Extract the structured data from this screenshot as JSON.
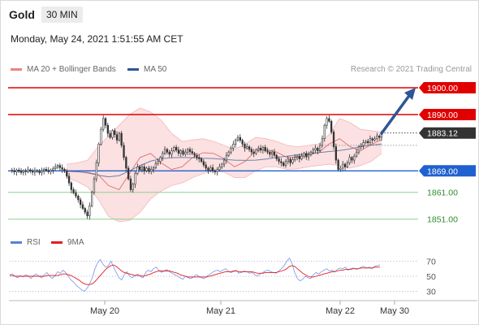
{
  "header": {
    "instrument": "Gold",
    "timeframe": "30 MIN",
    "datetime": "Monday, May 24, 2021 1:51:55 AM CET"
  },
  "legend": {
    "items": [
      {
        "label": "MA 20 + Bollinger Bands",
        "color": "#f08080"
      },
      {
        "label": "MA 50",
        "color": "#2f5597"
      }
    ],
    "copyright": "Research © 2021 Trading Central"
  },
  "rsi_legend": {
    "items": [
      {
        "label": "RSI",
        "color": "#5b7fd6"
      },
      {
        "label": "9MA",
        "color": "#e02020"
      }
    ]
  },
  "chart_data": [
    {
      "type": "line",
      "title": "",
      "x_ticks": [
        "May 20",
        "May 21",
        "May 22",
        "May 30"
      ],
      "ylim": [
        1846,
        1907
      ],
      "levels": [
        {
          "value": 1900.0,
          "label": "1900.00",
          "style": "resistance",
          "color": "#e00000"
        },
        {
          "value": 1890.0,
          "label": "1890.00",
          "style": "resistance",
          "color": "#e00000"
        },
        {
          "value": 1883.12,
          "label": "1883.12",
          "style": "last-price",
          "color": "#333333"
        },
        {
          "value": 1869.0,
          "label": "1869.00",
          "style": "pivot",
          "color": "#2060d0"
        },
        {
          "value": 1861.0,
          "label": "1861.00",
          "style": "support",
          "color": "#2e8b2e"
        },
        {
          "value": 1851.0,
          "label": "1851.00",
          "style": "support",
          "color": "#2e8b2e"
        }
      ],
      "price_series": [
        1869.2,
        1869.0,
        1868.6,
        1869.3,
        1868.8,
        1868.4,
        1869.0,
        1868.7,
        1869.4,
        1868.9,
        1868.5,
        1869.1,
        1868.8,
        1868.3,
        1869.0,
        1869.6,
        1869.2,
        1868.7,
        1869.3,
        1869.8,
        1870.5,
        1871.0,
        1870.2,
        1869.6,
        1868.8,
        1867.0,
        1864.5,
        1862.0,
        1860.8,
        1859.6,
        1858.2,
        1856.4,
        1855.0,
        1853.6,
        1852.2,
        1856.0,
        1861.0,
        1866.0,
        1872.0,
        1879.0,
        1884.5,
        1888.5,
        1886.0,
        1883.0,
        1881.5,
        1884.0,
        1882.5,
        1880.5,
        1883.0,
        1878.5,
        1874.0,
        1870.0,
        1866.0,
        1862.0,
        1864.0,
        1868.0,
        1870.5,
        1869.5,
        1870.5,
        1869.0,
        1870.0,
        1868.8,
        1869.6,
        1870.2,
        1871.8,
        1872.5,
        1874.0,
        1875.5,
        1877.0,
        1876.0,
        1875.2,
        1876.5,
        1877.8,
        1876.8,
        1875.6,
        1876.5,
        1875.2,
        1876.0,
        1877.0,
        1876.2,
        1875.5,
        1874.8,
        1874.0,
        1873.5,
        1872.5,
        1871.2,
        1870.0,
        1869.2,
        1870.2,
        1869.0,
        1868.6,
        1869.5,
        1870.5,
        1871.5,
        1873.0,
        1874.8,
        1876.0,
        1877.5,
        1879.0,
        1880.5,
        1881.5,
        1880.4,
        1879.0,
        1877.5,
        1878.0,
        1877.0,
        1876.0,
        1875.5,
        1876.8,
        1877.5,
        1876.8,
        1877.8,
        1876.5,
        1876.0,
        1875.2,
        1876.0,
        1874.8,
        1873.5,
        1872.5,
        1872.0,
        1871.0,
        1872.5,
        1873.4,
        1872.0,
        1873.2,
        1874.0,
        1874.5,
        1873.5,
        1874.5,
        1875.5,
        1874.2,
        1875.0,
        1876.0,
        1876.8,
        1877.5,
        1876.5,
        1878.5,
        1881.0,
        1886.0,
        1888.5,
        1887.5,
        1883.5,
        1878.0,
        1873.0,
        1869.5,
        1870.0,
        1871.5,
        1870.5,
        1872.0,
        1874.0,
        1873.0,
        1874.5,
        1876.0,
        1878.0,
        1878.5,
        1879.5,
        1880.0,
        1879.5,
        1881.0,
        1880.5,
        1881.0,
        1882.0,
        1881.5,
        1883.12
      ],
      "ma50": [
        1869.0,
        1868.7,
        1868.2,
        1867.4,
        1866.8,
        1867.2,
        1869.0,
        1871.0,
        1872.6,
        1873.5,
        1873.9,
        1874.0,
        1873.9,
        1873.7,
        1873.6,
        1873.3,
        1873.0,
        1872.9,
        1873.0,
        1873.4,
        1874.0,
        1874.5,
        1875.0,
        1875.4,
        1875.8,
        1876.2,
        1876.6,
        1877.2,
        1878.0,
        1878.6,
        1879.0
      ],
      "ma20": [
        1868.8,
        1868.6,
        1868.5,
        1867.6,
        1863.5,
        1862.0,
        1868.0,
        1874.0,
        1875.5,
        1872.0,
        1869.5,
        1870.5,
        1874.0,
        1875.8,
        1875.5,
        1873.5,
        1870.5,
        1872.5,
        1876.5,
        1877.0,
        1876.0,
        1874.0,
        1874.2,
        1875.0,
        1875.8,
        1879.0,
        1881.0,
        1878.0,
        1876.5,
        1878.8,
        1880.6
      ],
      "bollinger_upper": [
        1871.5,
        1872.0,
        1873.0,
        1878.0,
        1882.0,
        1886.0,
        1890.0,
        1892.5,
        1891.0,
        1888.0,
        1883.0,
        1880.0,
        1880.5,
        1881.0,
        1880.0,
        1878.5,
        1877.0,
        1879.0,
        1881.5,
        1881.0,
        1880.0,
        1878.5,
        1878.0,
        1878.5,
        1879.0,
        1882.5,
        1888.5,
        1887.0,
        1884.5,
        1884.0,
        1883.5
      ],
      "bollinger_lower": [
        1866.5,
        1865.0,
        1863.0,
        1858.5,
        1852.0,
        1850.0,
        1850.5,
        1853.5,
        1858.5,
        1861.5,
        1863.5,
        1864.5,
        1866.5,
        1868.0,
        1869.0,
        1868.5,
        1866.5,
        1866.5,
        1869.0,
        1870.5,
        1870.5,
        1869.5,
        1869.8,
        1870.5,
        1871.0,
        1871.5,
        1871.0,
        1870.0,
        1871.0,
        1872.5,
        1875.5
      ],
      "forecast_arrow": {
        "from": 1883.0,
        "to": 1900.0
      }
    },
    {
      "type": "line",
      "title": "",
      "ylim": [
        25,
        75
      ],
      "y_ticks": [
        70,
        50,
        30
      ],
      "rsi": [
        52,
        53,
        50,
        48,
        51,
        49,
        52,
        50,
        47,
        51,
        53,
        50,
        48,
        52,
        55,
        50,
        47,
        51,
        56,
        54,
        58,
        55,
        50,
        45,
        42,
        38,
        35,
        32,
        30,
        34,
        40,
        48,
        60,
        68,
        72,
        66,
        62,
        64,
        70,
        62,
        55,
        48,
        45,
        52,
        56,
        50,
        48,
        51,
        53,
        50,
        48,
        55,
        58,
        56,
        60,
        62,
        58,
        55,
        57,
        59,
        56,
        54,
        52,
        50,
        48,
        46,
        50,
        48,
        47,
        49,
        52,
        50,
        48,
        47,
        50,
        52,
        55,
        57,
        58,
        56,
        58,
        60,
        57,
        55,
        56,
        58,
        54,
        55,
        57,
        56,
        54,
        55,
        52,
        50,
        53,
        55,
        57,
        58,
        56,
        55,
        54,
        57,
        60,
        64,
        70,
        74,
        67,
        55,
        47,
        44,
        46,
        50,
        48,
        47,
        52,
        55,
        53,
        56,
        58,
        60,
        57,
        58,
        56,
        59,
        61,
        60,
        62,
        58,
        60,
        61,
        59,
        60,
        62,
        63,
        61,
        62,
        60,
        63,
        64,
        65
      ],
      "rsi_ma9": [
        51,
        51,
        50,
        50,
        50,
        50,
        50,
        50,
        50,
        50,
        50,
        50,
        50,
        50,
        51,
        51,
        51,
        51,
        51,
        52,
        53,
        53,
        52,
        51,
        49,
        47,
        45,
        42,
        40,
        39,
        39,
        40,
        43,
        47,
        51,
        55,
        59,
        62,
        64,
        65,
        63,
        60,
        57,
        55,
        54,
        53,
        52,
        51,
        51,
        51,
        50,
        51,
        52,
        53,
        55,
        56,
        57,
        57,
        57,
        57,
        57,
        56,
        55,
        54,
        52,
        51,
        50,
        49,
        49,
        49,
        49,
        49,
        49,
        49,
        49,
        50,
        51,
        52,
        53,
        54,
        55,
        56,
        56,
        56,
        57,
        57,
        56,
        56,
        56,
        56,
        56,
        56,
        55,
        54,
        54,
        54,
        55,
        55,
        55,
        55,
        55,
        56,
        57,
        58,
        60,
        63,
        64,
        63,
        60,
        57,
        54,
        52,
        50,
        49,
        49,
        50,
        51,
        52,
        53,
        54,
        55,
        56,
        56,
        57,
        58,
        58,
        59,
        59,
        59,
        60,
        60,
        60,
        61,
        61,
        61,
        61,
        61,
        62,
        62,
        62
      ]
    }
  ]
}
